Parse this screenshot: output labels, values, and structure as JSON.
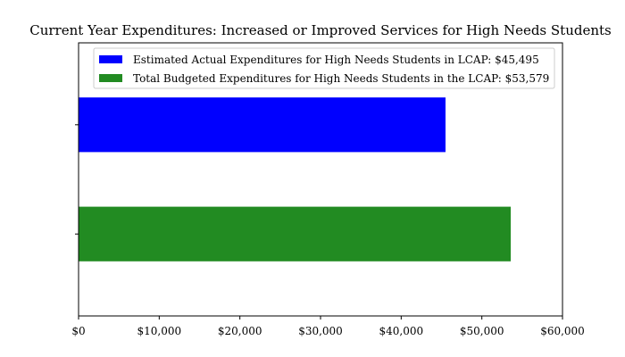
{
  "chart_data": {
    "type": "bar",
    "orientation": "horizontal",
    "title": "Current Year Expenditures: Increased or Improved Services for High Needs Students",
    "xlabel": "",
    "ylabel": "",
    "xlim": [
      0,
      60000
    ],
    "xticks": [
      0,
      10000,
      20000,
      30000,
      40000,
      50000,
      60000
    ],
    "xtick_labels": [
      "$0",
      "$10,000",
      "$20,000",
      "$30,000",
      "$40,000",
      "$50,000",
      "$60,000"
    ],
    "grid": false,
    "legend_position": "top",
    "series": [
      {
        "name": "Estimated Actual Expenditures for High Needs Students in LCAP: $45,495",
        "value": 45495,
        "color": "#0000ff"
      },
      {
        "name": "Total Budgeted Expenditures for High Needs Students in the LCAP: $53,579",
        "value": 53579,
        "color": "#228b22"
      }
    ]
  }
}
